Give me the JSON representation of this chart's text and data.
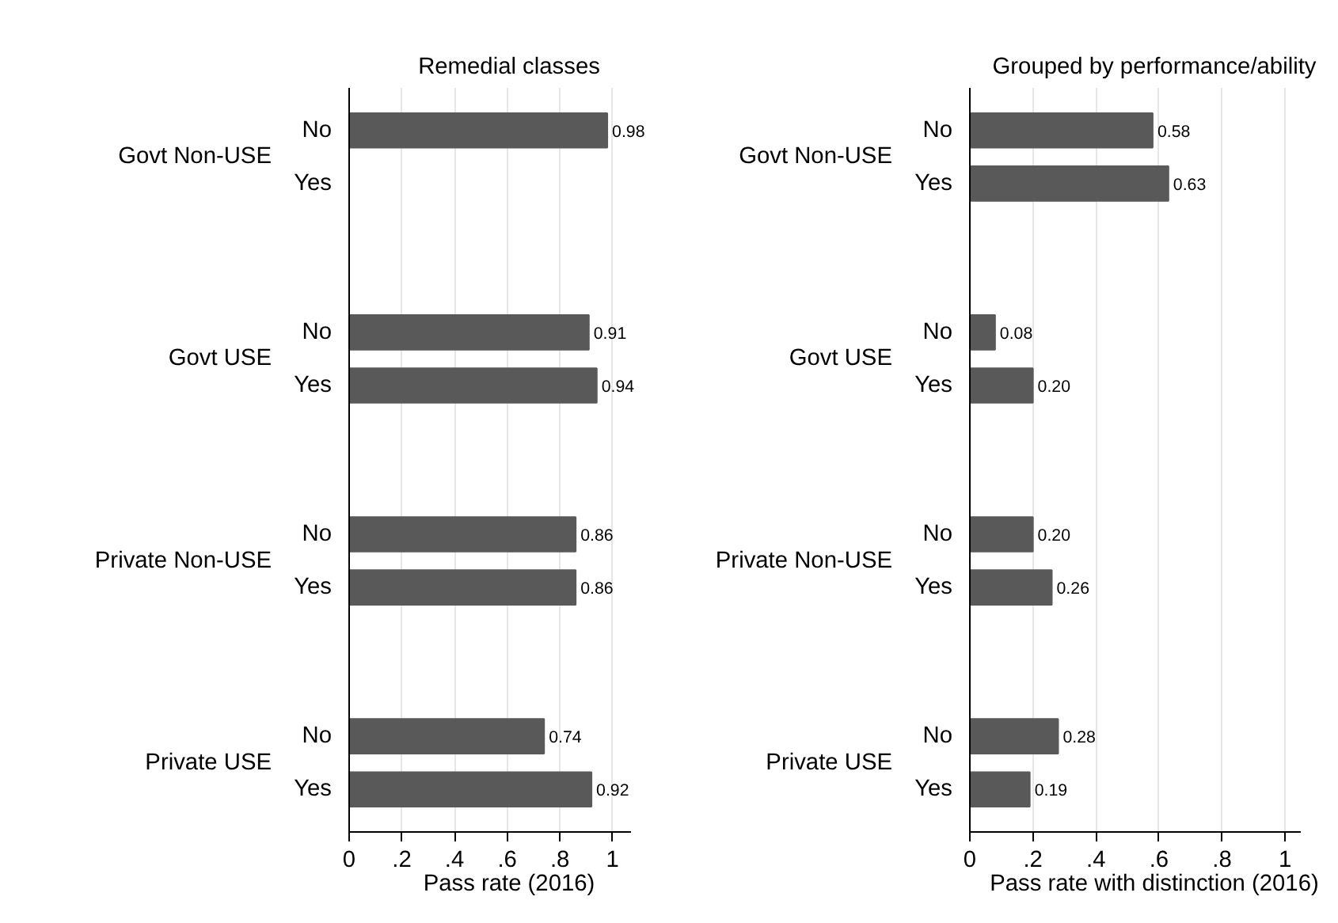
{
  "chart_data": [
    {
      "type": "bar",
      "orientation": "horizontal",
      "title": "Remedial classes",
      "xlabel": "Pass rate (2016)",
      "categories": [
        "No",
        "Yes",
        "No",
        "Yes",
        "No",
        "Yes",
        "No",
        "Yes"
      ],
      "annotations": [
        "Govt Non-USE",
        "Govt USE",
        "Private Non-USE",
        "Private USE"
      ],
      "values": [
        0.98,
        null,
        0.91,
        0.94,
        0.86,
        0.86,
        0.74,
        0.92
      ],
      "value_labels": [
        "0.98",
        null,
        "0.91",
        "0.94",
        "0.86",
        "0.86",
        "0.74",
        "0.92"
      ],
      "color": "#595959",
      "xlim": [
        0,
        1.07
      ],
      "xticks": [
        {
          "value": 0,
          "label": "0"
        },
        {
          "value": 0.2,
          "label": ".2"
        },
        {
          "value": 0.4,
          "label": ".4"
        },
        {
          "value": 0.6,
          "label": ".6"
        },
        {
          "value": 0.8,
          "label": ".8"
        },
        {
          "value": 1,
          "label": "1"
        }
      ],
      "grid": "x"
    },
    {
      "type": "bar",
      "orientation": "horizontal",
      "title": "Grouped by performance/ability",
      "xlabel": "Pass rate with distinction (2016)",
      "categories": [
        "No",
        "Yes",
        "No",
        "Yes",
        "No",
        "Yes",
        "No",
        "Yes"
      ],
      "annotations": [
        "Govt Non-USE",
        "Govt USE",
        "Private Non-USE",
        "Private USE"
      ],
      "values": [
        0.58,
        0.63,
        0.08,
        0.2,
        0.2,
        0.26,
        0.28,
        0.19
      ],
      "value_labels": [
        "0.58",
        "0.63",
        "0.08",
        "0.20",
        "0.20",
        "0.26",
        "0.28",
        "0.19"
      ],
      "color": "#595959",
      "xlim": [
        0,
        1.05
      ],
      "xticks": [
        {
          "value": 0,
          "label": "0"
        },
        {
          "value": 0.2,
          "label": ".2"
        },
        {
          "value": 0.4,
          "label": ".4"
        },
        {
          "value": 0.6,
          "label": ".6"
        },
        {
          "value": 0.8,
          "label": ".8"
        },
        {
          "value": 1,
          "label": "1"
        }
      ],
      "grid": "x"
    }
  ]
}
